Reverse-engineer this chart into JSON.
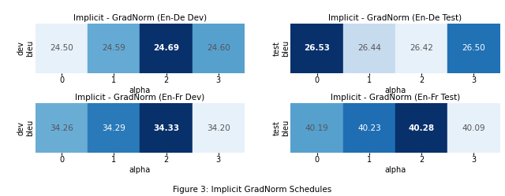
{
  "charts": [
    {
      "title": "Implicit - GradNorm (En-De Dev)",
      "values": [
        24.5,
        24.59,
        24.69,
        24.6
      ],
      "ylabel_top": "dev",
      "ylabel_bot": "bleu",
      "xlabel": "alpha",
      "xticks": [
        0,
        1,
        2,
        3
      ],
      "vmin": 24.5,
      "vmax": 24.69,
      "best_idx": 2
    },
    {
      "title": "Implicit - GradNorm (En-De Test)",
      "values": [
        26.53,
        26.44,
        26.42,
        26.5
      ],
      "ylabel_top": "test",
      "ylabel_bot": "bleu",
      "xlabel": "alpha",
      "xticks": [
        0,
        1,
        2,
        3
      ],
      "vmin": 26.42,
      "vmax": 26.53,
      "best_idx": 0
    },
    {
      "title": "Implicit - GradNorm (En-Fr Dev)",
      "values": [
        34.26,
        34.29,
        34.33,
        34.2
      ],
      "ylabel_top": "dev",
      "ylabel_bot": "bleu",
      "xlabel": "alpha",
      "xticks": [
        0,
        1,
        2,
        3
      ],
      "vmin": 34.2,
      "vmax": 34.33,
      "best_idx": 2
    },
    {
      "title": "Implicit - GradNorm (En-Fr Test)",
      "values": [
        40.19,
        40.23,
        40.28,
        40.09
      ],
      "ylabel_top": "test",
      "ylabel_bot": "bleu",
      "xlabel": "alpha",
      "xticks": [
        0,
        1,
        2,
        3
      ],
      "vmin": 40.09,
      "vmax": 40.28,
      "best_idx": 2
    }
  ],
  "cmap": "Blues",
  "figcaption": "Figure 3: Implicit GradNorm Schedules",
  "title_fontsize": 7.5,
  "label_fontsize": 7,
  "tick_fontsize": 7,
  "value_fontsize": 7.5,
  "cmap_low": 0.08,
  "cmap_high": 1.0
}
